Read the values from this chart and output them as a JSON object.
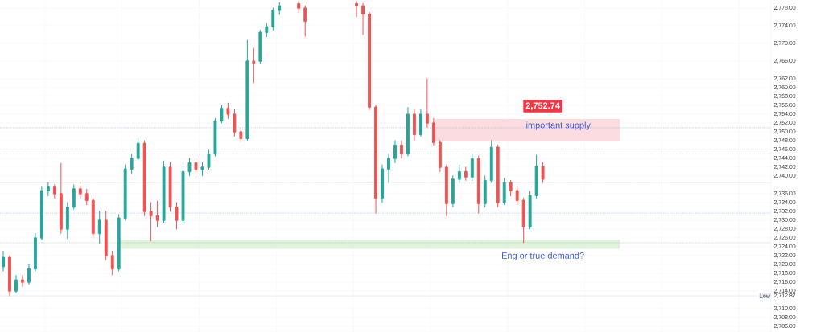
{
  "chart_data": {
    "type": "candlestick",
    "categories": [
      null,
      null,
      null,
      null,
      null,
      null,
      null,
      null,
      null,
      null,
      null,
      null,
      null,
      null,
      null,
      null,
      null,
      null,
      null,
      null,
      null,
      null,
      null,
      null,
      null,
      null,
      null,
      null,
      null,
      null,
      null,
      null,
      null,
      null,
      null,
      null,
      null,
      null,
      null,
      null,
      null,
      null,
      null,
      null,
      null,
      null,
      null,
      null,
      null,
      null,
      null,
      null,
      null,
      null,
      null,
      null,
      null,
      null,
      null,
      null,
      null,
      null,
      null,
      null,
      null,
      null,
      null,
      null,
      null,
      null,
      null,
      null,
      null,
      null,
      null,
      null,
      null,
      null,
      null,
      null,
      null,
      null,
      null,
      null,
      null,
      null,
      null,
      null,
      null,
      null,
      null,
      null,
      null,
      null,
      null,
      null,
      null,
      null,
      null,
      null,
      null,
      null,
      null,
      null,
      null,
      null,
      null,
      null,
      null,
      null,
      null,
      null,
      null,
      null,
      null,
      null,
      null,
      null,
      null,
      null
    ],
    "ohlc": [
      [
        2719.5,
        2723,
        2718.5,
        2721.6
      ],
      [
        2721.6,
        2722,
        2712.9,
        2714
      ],
      [
        2714,
        2717.5,
        2713.5,
        2716.5
      ],
      [
        2716.5,
        2717.5,
        2715,
        2716
      ],
      [
        2716,
        2720,
        2715.5,
        2719
      ],
      [
        2719,
        2727,
        2718.5,
        2726
      ],
      [
        2726,
        2737.5,
        2725.5,
        2736.7
      ],
      [
        2736.7,
        2738.5,
        2735.5,
        2737.5
      ],
      [
        2737.5,
        2738,
        2735,
        2736
      ],
      [
        2736,
        2742.9,
        2727,
        2728
      ],
      [
        2728,
        2734,
        2725.8,
        2733
      ],
      [
        2733,
        2738,
        2732.5,
        2737.1
      ],
      [
        2737.1,
        2737.8,
        2735,
        2736
      ],
      [
        2736,
        2737,
        2733.5,
        2734.5
      ],
      [
        2734.5,
        2735,
        2726,
        2727
      ],
      [
        2727,
        2732,
        2724.7,
        2730
      ],
      [
        2730,
        2732,
        2721,
        2722
      ],
      [
        2722,
        2723,
        2717.6,
        2719
      ],
      [
        2719,
        2731.3,
        2718.5,
        2730.5
      ],
      [
        2730.5,
        2742.5,
        2730,
        2741.6
      ],
      [
        2741.6,
        2745,
        2740.5,
        2744
      ],
      [
        2744,
        2748.5,
        2743.5,
        2747.4
      ],
      [
        2747.4,
        2748,
        2731,
        2732
      ],
      [
        2732,
        2734,
        2725.3,
        2731
      ],
      [
        2731,
        2734.3,
        2728.5,
        2730
      ],
      [
        2730,
        2743.4,
        2729.5,
        2742
      ],
      [
        2742,
        2743,
        2732,
        2733
      ],
      [
        2733,
        2734,
        2728,
        2730
      ],
      [
        2730,
        2742,
        2729.5,
        2741
      ],
      [
        2741,
        2744,
        2740,
        2743
      ],
      [
        2743,
        2744,
        2740.5,
        2741.5
      ],
      [
        2741.5,
        2743,
        2740,
        2742
      ],
      [
        2742,
        2746,
        2741.5,
        2745
      ],
      [
        2745,
        2753,
        2744.5,
        2752.5
      ],
      [
        2752.5,
        2756,
        2752,
        2755.3
      ],
      [
        2755.3,
        2756.5,
        2753,
        2754
      ],
      [
        2754,
        2755,
        2749,
        2750
      ],
      [
        2750,
        2751,
        2747.8,
        2748.5
      ],
      [
        2748.5,
        2770.7,
        2748,
        2766
      ],
      [
        2766,
        2768.9,
        2761.1,
        2765.5
      ],
      [
        2766,
        2773,
        2765.5,
        2772.5
      ],
      [
        2772.5,
        2774.5,
        2771.5,
        2773.8
      ],
      [
        2773.8,
        2778,
        2773,
        2777.5
      ],
      [
        2777.5,
        2779.2,
        2776.5,
        2778.5
      ],
      null,
      null,
      [
        2779,
        2779.5,
        2777,
        2778
      ],
      [
        2778,
        2778.5,
        2771.6,
        2775
      ],
      null,
      null,
      null,
      null,
      null,
      null,
      null,
      [
        2779,
        2779.5,
        2776,
        2778.5
      ],
      [
        2778.5,
        2779,
        2772,
        2776.7
      ],
      [
        2776.7,
        2777,
        2755,
        2755.6
      ],
      [
        2755.6,
        2756,
        2731.6,
        2735
      ],
      [
        2735,
        2742.5,
        2734,
        2741.6
      ],
      [
        2741.6,
        2745,
        2738.5,
        2744
      ],
      [
        2744,
        2748,
        2743,
        2747
      ],
      [
        2747,
        2748,
        2744,
        2745
      ],
      [
        2745,
        2755.5,
        2744.5,
        2754
      ],
      [
        2754,
        2755,
        2748,
        2749.4
      ],
      [
        2749.4,
        2755,
        2749,
        2754
      ],
      [
        2754,
        2762,
        2751,
        2752
      ],
      [
        2752,
        2753,
        2747,
        2747.6
      ],
      [
        2747.6,
        2748,
        2741,
        2742
      ],
      [
        2742,
        2742.5,
        2731,
        2733.8
      ],
      [
        2733.8,
        2740,
        2733,
        2739.3
      ],
      [
        2739.3,
        2742.5,
        2738.5,
        2741
      ],
      [
        2741,
        2742,
        2739,
        2739.8
      ],
      [
        2739.8,
        2745,
        2739,
        2743.9
      ],
      [
        2743.9,
        2744.5,
        2731.6,
        2733.8
      ],
      [
        2733.8,
        2740,
        2733,
        2739
      ],
      [
        2739,
        2748,
        2738.5,
        2746.5
      ],
      [
        2746.5,
        2747,
        2733,
        2734
      ],
      [
        2734,
        2739.5,
        2733.5,
        2738.5
      ],
      [
        2738.5,
        2739,
        2735.5,
        2736.7
      ],
      [
        2736.7,
        2737.5,
        2733.5,
        2734.5
      ],
      [
        2734.5,
        2735,
        2724.9,
        2728.5
      ],
      [
        2728.5,
        2736.5,
        2728,
        2735.6
      ],
      [
        2735.6,
        2744.7,
        2735,
        2742.2
      ],
      [
        2742.2,
        2743,
        2738.5,
        2739.3
      ],
      null,
      null,
      null,
      null,
      null,
      null,
      null,
      null,
      null,
      null,
      null,
      null,
      null,
      null,
      null,
      null,
      null,
      null,
      null,
      null,
      null,
      null,
      null,
      null,
      null,
      null,
      null,
      null,
      null,
      null,
      null,
      null,
      null,
      null,
      null
    ],
    "colors": [
      "#26a69a",
      "#ef5350",
      "#26a69a",
      "#ef5350",
      "#26a69a",
      "#26a69a",
      "#26a69a",
      "#26a69a",
      "#ef5350",
      "#ef5350",
      "#26a69a",
      "#26a69a",
      "#ef5350",
      "#ef5350",
      "#ef5350",
      "#26a69a",
      "#ef5350",
      "#ef5350",
      "#26a69a",
      "#26a69a",
      "#26a69a",
      "#26a69a",
      "#ef5350",
      "#ef5350",
      "#ef5350",
      "#26a69a",
      "#ef5350",
      "#ef5350",
      "#26a69a",
      "#26a69a",
      "#ef5350",
      "#26a69a",
      "#26a69a",
      "#26a69a",
      "#26a69a",
      "#ef5350",
      "#ef5350",
      "#ef5350",
      "#26a69a",
      "#ef5350",
      "#26a69a",
      "#26a69a",
      "#26a69a",
      "#26a69a",
      null,
      null,
      "#ef5350",
      "#ef5350",
      null,
      null,
      null,
      null,
      null,
      null,
      null,
      "#ef5350",
      "#ef5350",
      "#ef5350",
      "#ef5350",
      "#26a69a",
      "#26a69a",
      "#26a69a",
      "#ef5350",
      "#26a69a",
      "#ef5350",
      "#26a69a",
      "#ef5350",
      "#ef5350",
      "#ef5350",
      "#ef5350",
      "#26a69a",
      "#26a69a",
      "#ef5350",
      "#26a69a",
      "#ef5350",
      "#26a69a",
      "#26a69a",
      "#ef5350",
      "#26a69a",
      "#ef5350",
      "#ef5350",
      "#ef5350",
      "#26a69a",
      "#26a69a",
      "#ef5350",
      null,
      null,
      null,
      null,
      null,
      null,
      null,
      null,
      null,
      null,
      null,
      null,
      null,
      null,
      null,
      null,
      null,
      null,
      null,
      null,
      null,
      null,
      null,
      null,
      null,
      null,
      null,
      null,
      null,
      null,
      null,
      null,
      null,
      null,
      null
    ],
    "ylim": [
      2704.7,
      2779.8
    ],
    "yticks": [
      {
        "value": 2778,
        "label": "2,778.00"
      },
      {
        "value": 2774,
        "label": "2,774.00"
      },
      {
        "value": 2770,
        "label": "2,770.00"
      },
      {
        "value": 2766,
        "label": "2,766.00"
      },
      {
        "value": 2762,
        "label": "2,762.00"
      },
      {
        "value": 2760,
        "label": "2,760.00"
      },
      {
        "value": 2758,
        "label": "2,758.00"
      },
      {
        "value": 2756,
        "label": "2,756.00"
      },
      {
        "value": 2754,
        "label": "2,754.00"
      },
      {
        "value": 2752,
        "label": "2,752.00"
      },
      {
        "value": 2750,
        "label": "2,750.00"
      },
      {
        "value": 2748,
        "label": "2,748.00"
      },
      {
        "value": 2746,
        "label": "2,746.00"
      },
      {
        "value": 2744,
        "label": "2,744.00"
      },
      {
        "value": 2742,
        "label": "2,742.00"
      },
      {
        "value": 2740,
        "label": "2,740.00"
      },
      {
        "value": 2736,
        "label": "2,736.00"
      },
      {
        "value": 2734,
        "label": "2,734.00"
      },
      {
        "value": 2732,
        "label": "2,732.00"
      },
      {
        "value": 2730,
        "label": "2,730.00"
      },
      {
        "value": 2728,
        "label": "2,728.00"
      },
      {
        "value": 2726,
        "label": "2,726.00"
      },
      {
        "value": 2724,
        "label": "2,724.00"
      },
      {
        "value": 2722,
        "label": "2,722.00"
      },
      {
        "value": 2720,
        "label": "2,720.00"
      },
      {
        "value": 2718,
        "label": "2,718.00"
      },
      {
        "value": 2716,
        "label": "2,716.00"
      },
      {
        "value": 2714,
        "label": "2,714.00"
      },
      {
        "value": 2712.87,
        "label": "2,712.87"
      },
      {
        "value": 2710,
        "label": "2,710.00"
      },
      {
        "value": 2708,
        "label": "2,708.00"
      },
      {
        "value": 2706,
        "label": "2,706.00"
      }
    ],
    "tick_labels": "y",
    "grid": true,
    "bands": [
      {
        "axis": "y",
        "from": 2747.8,
        "to": 2752.9,
        "label": "important supply",
        "color": "#fbdde1"
      },
      {
        "axis": "y",
        "from": 2723.5,
        "to": 2725.6,
        "label": "Eng or true demand?",
        "color": "#e0f1dc"
      }
    ],
    "ref_lines": [
      {
        "axis": "y",
        "value": 2750.9,
        "color": "#6f8fd8",
        "line_style": "dotted"
      },
      {
        "axis": "y",
        "value": 2745,
        "color": "#6f8fd8",
        "line_style": "dotted"
      },
      {
        "axis": "y",
        "value": 2731.6,
        "color": "#6f8fd8",
        "line_style": "dotted"
      },
      {
        "axis": "y",
        "value": 2724.9,
        "color": "#7fb877",
        "line_style": "dotted"
      },
      {
        "axis": "y",
        "value": 2738.4,
        "color": "#f5a3ab",
        "line_style": "dotted"
      },
      {
        "axis": "y",
        "value": 2712.87,
        "label": "Low",
        "color": "#e3e6ee",
        "line_style": "solid"
      }
    ],
    "annotations": [
      {
        "text": "2,752.74",
        "y": 2752.74
      }
    ]
  }
}
